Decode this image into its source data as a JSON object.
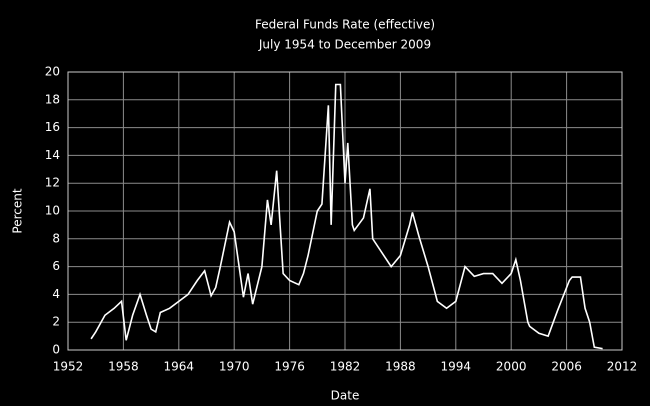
{
  "chart_data": {
    "type": "line",
    "title": "Federal Funds Rate (effective)",
    "subtitle": "July 1954 to December 2009",
    "x_label": "Date",
    "y_label": "Percent",
    "xlim": [
      1952,
      2012
    ],
    "xticks": [
      1952,
      1958,
      1964,
      1970,
      1976,
      1982,
      1988,
      1994,
      2000,
      2006,
      2012
    ],
    "ylim": [
      0,
      20
    ],
    "yticks": [
      0,
      2,
      4,
      6,
      8,
      10,
      12,
      14,
      16,
      18,
      20
    ],
    "grid": true,
    "grid_color": "#8c8c8c",
    "series": [
      {
        "name": "Federal Funds Rate",
        "color": "#ffffff",
        "x": [
          1954.5,
          1955,
          1956,
          1957,
          1957.8,
          1958.3,
          1959,
          1959.8,
          1960.5,
          1961,
          1961.5,
          1962,
          1963,
          1964,
          1965,
          1966,
          1966.8,
          1967.5,
          1968,
          1968.5,
          1969.5,
          1970,
          1971,
          1971.5,
          1972,
          1973,
          1973.6,
          1974,
          1974.6,
          1975.3,
          1976,
          1977,
          1977.5,
          1978,
          1979,
          1979.5,
          1980.2,
          1980.5,
          1981,
          1981.5,
          1982,
          1982.3,
          1982.8,
          1983,
          1984,
          1984.7,
          1985,
          1986,
          1987,
          1988,
          1989,
          1989.3,
          1990,
          1991,
          1992,
          1993,
          1994,
          1995,
          1996,
          1997,
          1998,
          1999,
          2000,
          2000.5,
          2001,
          2001.8,
          2002,
          2003,
          2004,
          2005,
          2006.3,
          2006.6,
          2007.5,
          2008,
          2008.5,
          2009,
          2009.9
        ],
        "values": [
          0.8,
          1.3,
          2.5,
          3.0,
          3.5,
          0.7,
          2.5,
          4.0,
          2.5,
          1.5,
          1.3,
          2.7,
          3.0,
          3.5,
          4.0,
          5.0,
          5.7,
          3.9,
          4.5,
          6.0,
          9.2,
          8.5,
          3.8,
          5.5,
          3.3,
          6.0,
          10.8,
          9.0,
          12.9,
          5.5,
          5.0,
          4.7,
          5.5,
          6.8,
          10.0,
          10.5,
          17.6,
          9.0,
          19.1,
          19.1,
          12.0,
          14.9,
          9.0,
          8.6,
          9.5,
          11.6,
          8.0,
          7.0,
          6.0,
          6.8,
          9.0,
          9.9,
          8.2,
          6.0,
          3.5,
          3.0,
          3.5,
          6.0,
          5.3,
          5.5,
          5.5,
          4.8,
          5.5,
          6.5,
          5.0,
          2.0,
          1.7,
          1.2,
          1.0,
          2.8,
          5.0,
          5.25,
          5.25,
          3.0,
          2.0,
          0.2,
          0.1
        ]
      }
    ]
  }
}
